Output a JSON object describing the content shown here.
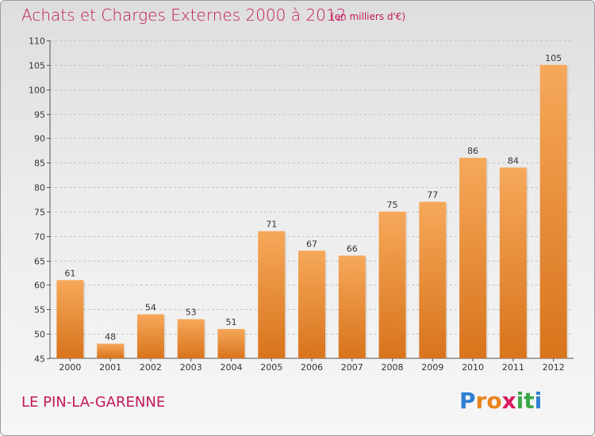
{
  "header": {
    "title": "Achats et Charges Externes 2000 à 2012",
    "unit": "(en milliers d'€)"
  },
  "footer": {
    "town": "LE PIN-LA-GARENNE",
    "logo_letters": [
      "P",
      "r",
      "o",
      "x",
      "i",
      "t",
      "i"
    ],
    "logo_colors": [
      "#2e7fd3",
      "#e8841a",
      "#e8841a",
      "#d81b60",
      "#3aa845",
      "#3aa845",
      "#2e7fd3"
    ]
  },
  "colors": {
    "accent": "#c2185b",
    "bar_top": "#f6a85a",
    "bar_bottom": "#d8741c"
  },
  "chart_data": {
    "type": "bar",
    "title": "Achats et Charges Externes 2000 à 2012",
    "subtitle": "(en milliers d'€)",
    "categories": [
      "2000",
      "2001",
      "2002",
      "2003",
      "2004",
      "2005",
      "2006",
      "2007",
      "2008",
      "2009",
      "2010",
      "2011",
      "2012"
    ],
    "values": [
      61,
      48,
      54,
      53,
      51,
      71,
      67,
      66,
      75,
      77,
      86,
      84,
      105
    ],
    "ylim": [
      45,
      110
    ],
    "yticks": [
      45,
      50,
      55,
      60,
      65,
      70,
      75,
      80,
      85,
      90,
      95,
      100,
      105,
      110
    ],
    "grid": true,
    "legend": "none"
  }
}
